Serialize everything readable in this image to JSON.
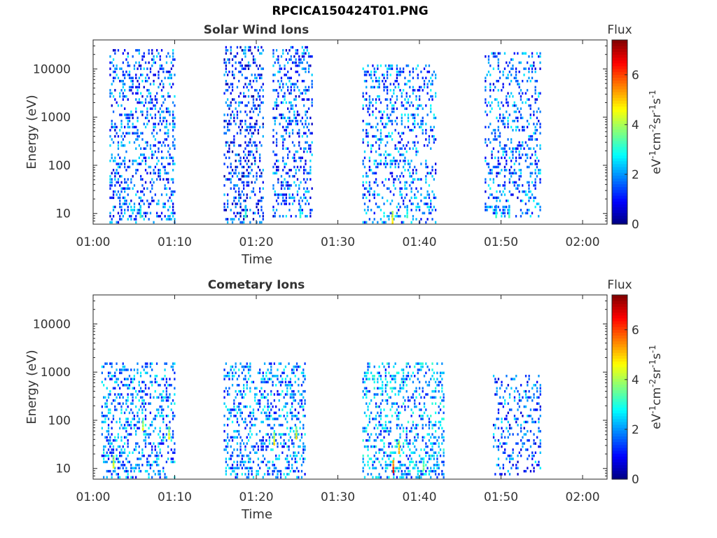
{
  "figure": {
    "title": "RPCICA150424T01.PNG"
  },
  "chart_data": [
    {
      "type": "heatmap",
      "title": "Solar Wind Ions",
      "xlabel": "Time",
      "ylabel": "Energy (eV)",
      "y_scale": "log",
      "xlim": [
        "01:00",
        "02:03"
      ],
      "ylim": [
        6,
        40000
      ],
      "xticks": [
        "01:00",
        "01:10",
        "01:20",
        "01:30",
        "01:40",
        "01:50",
        "02:00"
      ],
      "yticks": [
        10,
        100,
        1000,
        10000
      ],
      "ytick_labels": [
        "10",
        "100",
        "1000",
        "10000"
      ],
      "colorbar": {
        "title": "Flux",
        "label": "eV-1cm-2sr-1s-1",
        "label_parts": [
          [
            "eV",
            "-1"
          ],
          [
            "cm",
            "-2"
          ],
          [
            "sr",
            "-1"
          ],
          [
            "s",
            "-1"
          ]
        ],
        "range": [
          0,
          7.4
        ],
        "ticks": [
          0,
          2,
          4,
          6
        ],
        "colormap": "jet"
      },
      "bursts": [
        {
          "start": "01:02",
          "end": "01:10",
          "emin": 6,
          "emax": 25000,
          "flux": 1.6,
          "density": 0.3
        },
        {
          "start": "01:16",
          "end": "01:21",
          "emin": 6,
          "emax": 30000,
          "flux": 1.3,
          "density": 0.33
        },
        {
          "start": "01:22",
          "end": "01:27",
          "emin": 8,
          "emax": 28000,
          "flux": 1.6,
          "density": 0.32
        },
        {
          "start": "01:33",
          "end": "01:42",
          "emin": 6,
          "emax": 12000,
          "flux": 1.8,
          "density": 0.28
        },
        {
          "start": "01:48",
          "end": "01:55",
          "emin": 8,
          "emax": 23000,
          "flux": 1.7,
          "density": 0.26
        }
      ],
      "hot_spots": [
        {
          "time": "01:05:48",
          "energy": 8,
          "flux": 3.3
        },
        {
          "time": "01:18:42",
          "energy": 8,
          "flux": 3.3
        },
        {
          "time": "01:25:24",
          "energy": 8,
          "flux": 3.3
        },
        {
          "time": "01:38:30",
          "energy": 8,
          "flux": 3.2
        },
        {
          "time": "01:36:42",
          "energy": 6,
          "flux": 5.0
        },
        {
          "time": "01:49:24",
          "energy": 8,
          "flux": 3.2
        },
        {
          "time": "01:51:00",
          "energy": 8,
          "flux": 3.2
        }
      ]
    },
    {
      "type": "heatmap",
      "title": "Cometary Ions",
      "xlabel": "Time",
      "ylabel": "Energy (eV)",
      "y_scale": "log",
      "xlim": [
        "01:00",
        "02:03"
      ],
      "ylim": [
        6,
        40000
      ],
      "xticks": [
        "01:00",
        "01:10",
        "01:20",
        "01:30",
        "01:40",
        "01:50",
        "02:00"
      ],
      "yticks": [
        10,
        100,
        1000,
        10000
      ],
      "ytick_labels": [
        "10",
        "100",
        "1000",
        "10000"
      ],
      "colorbar": {
        "title": "Flux",
        "label": "eV-1cm-2sr-1s-1",
        "label_parts": [
          [
            "eV",
            "-1"
          ],
          [
            "cm",
            "-2"
          ],
          [
            "sr",
            "-1"
          ],
          [
            "s",
            "-1"
          ]
        ],
        "range": [
          0,
          7.4
        ],
        "ticks": [
          0,
          2,
          4,
          6
        ],
        "colormap": "jet"
      },
      "bursts": [
        {
          "start": "01:01",
          "end": "01:10",
          "emin": 6,
          "emax": 1500,
          "flux": 1.9,
          "density": 0.33
        },
        {
          "start": "01:16",
          "end": "01:26",
          "emin": 6,
          "emax": 1500,
          "flux": 1.9,
          "density": 0.31
        },
        {
          "start": "01:33",
          "end": "01:43",
          "emin": 6,
          "emax": 1600,
          "flux": 2.1,
          "density": 0.32
        },
        {
          "start": "01:49",
          "end": "01:55",
          "emin": 7,
          "emax": 900,
          "flux": 1.6,
          "density": 0.24
        }
      ],
      "hot_spots": [
        {
          "time": "01:02:30",
          "energy": 10,
          "flux": 4.6
        },
        {
          "time": "01:06:06",
          "energy": 60,
          "flux": 4.4
        },
        {
          "time": "01:09:18",
          "energy": 40,
          "flux": 4.5
        },
        {
          "time": "01:22:12",
          "energy": 30,
          "flux": 4.8
        },
        {
          "time": "01:24:54",
          "energy": 40,
          "flux": 4.6
        },
        {
          "time": "01:36:48",
          "energy": 8,
          "flux": 6.3
        },
        {
          "time": "01:37:30",
          "energy": 20,
          "flux": 5.2
        },
        {
          "time": "01:40:30",
          "energy": 9,
          "flux": 3.8
        }
      ]
    }
  ]
}
